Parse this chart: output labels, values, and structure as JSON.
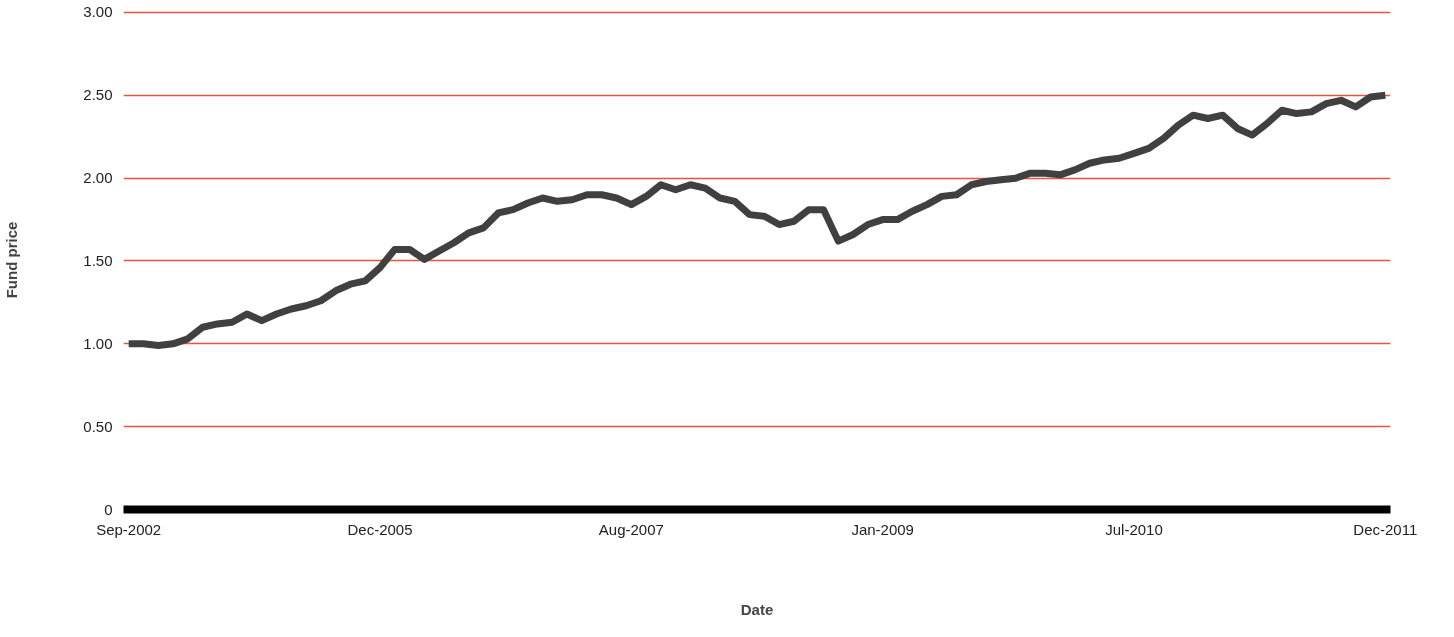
{
  "chart_data": {
    "type": "line",
    "xlabel": "Date",
    "ylabel": "Fund price",
    "categories": [
      "Sep-2002",
      null,
      null,
      null,
      null,
      null,
      null,
      null,
      null,
      null,
      null,
      null,
      null,
      null,
      null,
      null,
      null,
      "Dec-2005",
      null,
      null,
      null,
      null,
      null,
      null,
      null,
      null,
      null,
      null,
      null,
      null,
      null,
      null,
      null,
      null,
      "Aug-2007",
      null,
      null,
      null,
      null,
      null,
      null,
      null,
      null,
      null,
      null,
      null,
      null,
      null,
      null,
      null,
      null,
      "Jan-2009",
      null,
      null,
      null,
      null,
      null,
      null,
      null,
      null,
      null,
      null,
      null,
      null,
      null,
      null,
      null,
      null,
      "Jul-2010",
      null,
      null,
      null,
      null,
      null,
      null,
      null,
      null,
      null,
      null,
      null,
      null,
      null,
      null,
      null,
      null,
      "Dec-2011"
    ],
    "series": [
      {
        "color": "#404040",
        "values": [
          1.0,
          1.0,
          0.99,
          1.0,
          1.03,
          1.1,
          1.12,
          1.13,
          1.18,
          1.14,
          1.18,
          1.21,
          1.23,
          1.26,
          1.32,
          1.36,
          1.38,
          1.46,
          1.57,
          1.57,
          1.51,
          1.56,
          1.61,
          1.67,
          1.7,
          1.79,
          1.81,
          1.85,
          1.88,
          1.86,
          1.87,
          1.9,
          1.9,
          1.88,
          1.84,
          1.89,
          1.96,
          1.93,
          1.96,
          1.94,
          1.88,
          1.86,
          1.78,
          1.77,
          1.72,
          1.74,
          1.81,
          1.81,
          1.62,
          1.66,
          1.72,
          1.75,
          1.75,
          1.8,
          1.84,
          1.89,
          1.9,
          1.96,
          1.98,
          1.99,
          2.0,
          2.03,
          2.03,
          2.02,
          2.05,
          2.09,
          2.11,
          2.12,
          2.15,
          2.18,
          2.24,
          2.32,
          2.38,
          2.36,
          2.38,
          2.3,
          2.26,
          2.33,
          2.41,
          2.39,
          2.4,
          2.45,
          2.47,
          2.43,
          2.49,
          2.5
        ]
      }
    ],
    "ylim": [
      0,
      3
    ],
    "yticks": [
      0,
      {
        "value": 0.5,
        "label": "0.50"
      },
      {
        "value": 1,
        "label": "1.00"
      },
      {
        "value": 1.5,
        "label": "1.50"
      },
      {
        "value": 2,
        "label": "2.00"
      },
      {
        "value": 2.5,
        "label": "2.50"
      },
      {
        "value": 3,
        "label": "3.00"
      }
    ],
    "grid": "y",
    "marker": "none",
    "line_style": "solid"
  }
}
